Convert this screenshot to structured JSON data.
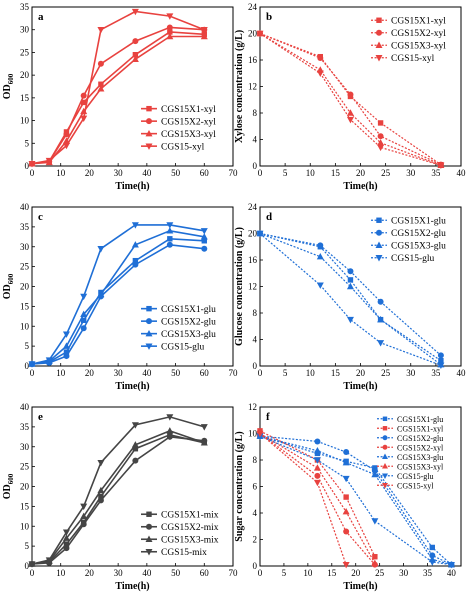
{
  "chart_data": [
    {
      "id": "a",
      "type": "line",
      "panel_label": "a",
      "xlabel": "Time(h)",
      "ylabel": "OD",
      "ylabel_sub": "600",
      "xlim": [
        0,
        70
      ],
      "ylim": [
        0,
        35
      ],
      "xticks": [
        0,
        10,
        20,
        30,
        40,
        50,
        60,
        70
      ],
      "yticks": [
        0,
        5,
        10,
        15,
        20,
        25,
        30,
        35
      ],
      "legend_position": "center-right",
      "series": [
        {
          "name": "CGS15X1-xyl",
          "color": "#e8423f",
          "marker": "square",
          "dashed": false,
          "x": [
            0,
            6,
            12,
            18,
            24,
            36,
            48,
            60
          ],
          "y": [
            0.5,
            1.0,
            7.5,
            14.0,
            18.0,
            24.5,
            29.5,
            29.0
          ]
        },
        {
          "name": "CGS15X2-xyl",
          "color": "#e8423f",
          "marker": "circle",
          "dashed": false,
          "x": [
            0,
            6,
            12,
            18,
            24,
            36,
            48,
            60
          ],
          "y": [
            0.5,
            1.0,
            7.0,
            15.5,
            22.5,
            27.5,
            30.5,
            30.0
          ]
        },
        {
          "name": "CGS15X3-xyl",
          "color": "#e8423f",
          "marker": "triangle-up",
          "dashed": false,
          "x": [
            0,
            6,
            12,
            18,
            24,
            36,
            48,
            60
          ],
          "y": [
            0.5,
            0.8,
            5.5,
            12.0,
            17.0,
            23.5,
            28.5,
            28.5
          ]
        },
        {
          "name": "CGS15-xyl",
          "color": "#e8423f",
          "marker": "triangle-down",
          "dashed": false,
          "x": [
            0,
            6,
            12,
            18,
            24,
            36,
            48,
            60
          ],
          "y": [
            0.5,
            1.2,
            4.5,
            10.5,
            30.0,
            34.0,
            33.0,
            30.0
          ]
        }
      ]
    },
    {
      "id": "b",
      "type": "line",
      "panel_label": "b",
      "xlabel": "Time(h)",
      "ylabel": "Xylose concentration (g/L)",
      "xlim": [
        0,
        40
      ],
      "ylim": [
        0,
        24
      ],
      "xticks": [
        0,
        5,
        10,
        15,
        20,
        25,
        30,
        35,
        40
      ],
      "yticks": [
        0,
        4,
        8,
        12,
        16,
        20,
        24
      ],
      "legend_position": "top-right",
      "series": [
        {
          "name": "CGS15X1-xyl",
          "color": "#e8423f",
          "marker": "square",
          "dashed": true,
          "x": [
            0,
            12,
            18,
            24,
            36
          ],
          "y": [
            20,
            16.5,
            10.5,
            6.5,
            0.2
          ]
        },
        {
          "name": "CGS15X2-xyl",
          "color": "#e8423f",
          "marker": "circle",
          "dashed": true,
          "x": [
            0,
            12,
            18,
            24,
            36
          ],
          "y": [
            20,
            16.3,
            10.8,
            4.5,
            0.2
          ]
        },
        {
          "name": "CGS15X3-xyl",
          "color": "#e8423f",
          "marker": "triangle-up",
          "dashed": true,
          "x": [
            0,
            12,
            18,
            24,
            36
          ],
          "y": [
            20,
            14.5,
            8.0,
            3.5,
            0.1
          ]
        },
        {
          "name": "CGS15-xyl",
          "color": "#e8423f",
          "marker": "triangle-down",
          "dashed": true,
          "x": [
            0,
            12,
            18,
            24,
            36
          ],
          "y": [
            20,
            14.0,
            7.0,
            2.8,
            0.1
          ]
        }
      ]
    },
    {
      "id": "c",
      "type": "line",
      "panel_label": "c",
      "xlabel": "Time(h)",
      "ylabel": "OD",
      "ylabel_sub": "600",
      "xlim": [
        0,
        70
      ],
      "ylim": [
        0,
        40
      ],
      "xticks": [
        0,
        10,
        20,
        30,
        40,
        50,
        60,
        70
      ],
      "yticks": [
        0,
        5,
        10,
        15,
        20,
        25,
        30,
        35,
        40
      ],
      "legend_position": "center-right",
      "series": [
        {
          "name": "CGS15X1-glu",
          "color": "#1f6fd6",
          "marker": "square",
          "dashed": false,
          "x": [
            0,
            6,
            12,
            18,
            24,
            36,
            48,
            60
          ],
          "y": [
            0.5,
            1.0,
            3.5,
            11.5,
            18.5,
            26.5,
            32.0,
            31.5
          ]
        },
        {
          "name": "CGS15X2-glu",
          "color": "#1f6fd6",
          "marker": "circle",
          "dashed": false,
          "x": [
            0,
            6,
            12,
            18,
            24,
            36,
            48,
            60
          ],
          "y": [
            0.5,
            0.8,
            2.5,
            9.5,
            17.5,
            25.5,
            30.5,
            29.5
          ]
        },
        {
          "name": "CGS15X3-glu",
          "color": "#1f6fd6",
          "marker": "triangle-up",
          "dashed": false,
          "x": [
            0,
            6,
            12,
            18,
            24,
            36,
            48,
            60
          ],
          "y": [
            0.5,
            1.2,
            5.0,
            13.0,
            18.0,
            30.5,
            34.0,
            32.5
          ]
        },
        {
          "name": "CGS15-glu",
          "color": "#1f6fd6",
          "marker": "triangle-down",
          "dashed": false,
          "x": [
            0,
            6,
            12,
            18,
            24,
            36,
            48,
            60
          ],
          "y": [
            0.5,
            1.5,
            8.0,
            17.5,
            29.5,
            35.5,
            35.5,
            34.0
          ]
        }
      ]
    },
    {
      "id": "d",
      "type": "line",
      "panel_label": "d",
      "xlabel": "Time(h)",
      "ylabel": "Glucose concentration (g/L)",
      "xlim": [
        0,
        40
      ],
      "ylim": [
        0,
        24
      ],
      "xticks": [
        0,
        5,
        10,
        15,
        20,
        25,
        30,
        35,
        40
      ],
      "yticks": [
        0,
        4,
        8,
        12,
        16,
        20,
        24
      ],
      "legend_position": "top-right",
      "series": [
        {
          "name": "CGS15X1-glu",
          "color": "#1f6fd6",
          "marker": "square",
          "dashed": true,
          "x": [
            0,
            12,
            18,
            24,
            36
          ],
          "y": [
            20,
            18.0,
            13.0,
            7.0,
            0.8
          ]
        },
        {
          "name": "CGS15X2-glu",
          "color": "#1f6fd6",
          "marker": "circle",
          "dashed": true,
          "x": [
            0,
            12,
            18,
            24,
            36
          ],
          "y": [
            20,
            18.2,
            14.3,
            9.7,
            1.6
          ]
        },
        {
          "name": "CGS15X3-glu",
          "color": "#1f6fd6",
          "marker": "triangle-up",
          "dashed": true,
          "x": [
            0,
            12,
            18,
            24,
            36
          ],
          "y": [
            20,
            16.5,
            12.0,
            7.0,
            0.2
          ]
        },
        {
          "name": "CGS15-glu",
          "color": "#1f6fd6",
          "marker": "triangle-down",
          "dashed": true,
          "x": [
            0,
            12,
            18,
            24,
            36
          ],
          "y": [
            20,
            12.2,
            7.0,
            3.5,
            0.1
          ]
        }
      ]
    },
    {
      "id": "e",
      "type": "line",
      "panel_label": "e",
      "xlabel": "Time(h)",
      "ylabel": "OD",
      "ylabel_sub": "600",
      "xlim": [
        0,
        70
      ],
      "ylim": [
        0,
        40
      ],
      "xticks": [
        0,
        10,
        20,
        30,
        40,
        50,
        60,
        70
      ],
      "yticks": [
        0,
        5,
        10,
        15,
        20,
        25,
        30,
        35,
        40
      ],
      "legend_position": "bottom-right",
      "series": [
        {
          "name": "CGS15X1-mix",
          "color": "#454545",
          "marker": "square",
          "dashed": false,
          "x": [
            0,
            6,
            12,
            18,
            24,
            36,
            48,
            60
          ],
          "y": [
            0.5,
            1.0,
            5.5,
            11.0,
            17.5,
            29.5,
            33.0,
            31.0
          ]
        },
        {
          "name": "CGS15X2-mix",
          "color": "#454545",
          "marker": "circle",
          "dashed": false,
          "x": [
            0,
            6,
            12,
            18,
            24,
            36,
            48,
            60
          ],
          "y": [
            0.5,
            0.8,
            4.5,
            10.5,
            16.5,
            26.5,
            32.5,
            31.5
          ]
        },
        {
          "name": "CGS15X3-mix",
          "color": "#454545",
          "marker": "triangle-up",
          "dashed": false,
          "x": [
            0,
            6,
            12,
            18,
            24,
            36,
            48,
            60
          ],
          "y": [
            0.5,
            1.2,
            7.0,
            12.5,
            19.0,
            30.5,
            34.0,
            31.0
          ]
        },
        {
          "name": "CGS15-mix",
          "color": "#454545",
          "marker": "triangle-down",
          "dashed": false,
          "x": [
            0,
            6,
            12,
            18,
            24,
            36,
            48,
            60
          ],
          "y": [
            0.5,
            1.5,
            8.5,
            15.0,
            26.0,
            35.5,
            37.5,
            35.0
          ]
        }
      ]
    },
    {
      "id": "f",
      "type": "line",
      "panel_label": "f",
      "xlabel": "Time(h)",
      "ylabel": "Sugar concentration (g/L)",
      "xlim": [
        0,
        42
      ],
      "ylim": [
        0,
        12
      ],
      "xticks": [
        0,
        5,
        10,
        15,
        20,
        25,
        30,
        35,
        40
      ],
      "yticks": [
        0,
        2,
        4,
        6,
        8,
        10,
        12
      ],
      "legend_position": "top-right",
      "series": [
        {
          "name": "CGS15X1-glu",
          "color": "#1f6fd6",
          "marker": "square",
          "dashed": true,
          "x": [
            0,
            12,
            18,
            24,
            36,
            40
          ],
          "y": [
            9.8,
            8.5,
            7.9,
            7.4,
            1.4,
            0.1
          ]
        },
        {
          "name": "CGS15X1-xyl",
          "color": "#e8423f",
          "marker": "square",
          "dashed": true,
          "x": [
            0,
            12,
            18,
            24
          ],
          "y": [
            10.2,
            8.0,
            5.2,
            0.7
          ]
        },
        {
          "name": "CGS15X2-glu",
          "color": "#1f6fd6",
          "marker": "circle",
          "dashed": true,
          "x": [
            0,
            12,
            18,
            24,
            36,
            40
          ],
          "y": [
            9.8,
            9.4,
            8.6,
            7.2,
            0.8,
            0.1
          ]
        },
        {
          "name": "CGS15X2-xyl",
          "color": "#e8423f",
          "marker": "circle",
          "dashed": true,
          "x": [
            0,
            12,
            18,
            24
          ],
          "y": [
            10.0,
            6.8,
            2.6,
            0.1
          ]
        },
        {
          "name": "CGS15X3-glu",
          "color": "#1f6fd6",
          "marker": "triangle-up",
          "dashed": true,
          "x": [
            0,
            12,
            18,
            24,
            36,
            40
          ],
          "y": [
            9.8,
            8.7,
            7.8,
            6.9,
            0.5,
            0.1
          ]
        },
        {
          "name": "CGS15X3-xyl",
          "color": "#e8423f",
          "marker": "triangle-up",
          "dashed": true,
          "x": [
            0,
            12,
            18,
            24
          ],
          "y": [
            10.0,
            7.4,
            4.1,
            0.2
          ]
        },
        {
          "name": "CGS15-glu",
          "color": "#1f6fd6",
          "marker": "triangle-down",
          "dashed": true,
          "x": [
            0,
            12,
            18,
            24,
            36,
            40
          ],
          "y": [
            9.8,
            8.0,
            6.6,
            3.4,
            0.3,
            0.1
          ]
        },
        {
          "name": "CGS15-xyl",
          "color": "#e8423f",
          "marker": "triangle-down",
          "dashed": true,
          "x": [
            0,
            12,
            18
          ],
          "y": [
            10.0,
            6.3,
            0.1
          ]
        }
      ]
    }
  ]
}
